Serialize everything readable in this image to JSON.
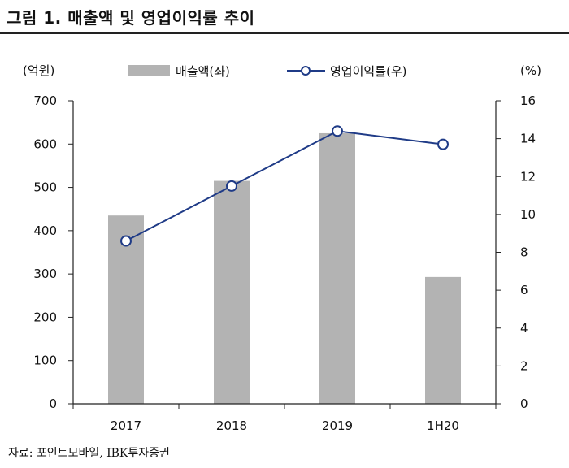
{
  "header": {
    "title": "그림 1. 매출액 및 영업이익률 추이"
  },
  "footer": {
    "source": "자료: 포인트모바일, IBK투자증권"
  },
  "colors": {
    "bar": "#b3b3b3",
    "line": "#1f3b87",
    "marker_fill": "#ffffff"
  },
  "chart_data": {
    "type": "bar",
    "categories": [
      "2017",
      "2018",
      "2019",
      "1H20"
    ],
    "series": [
      {
        "name": "매출액(좌)",
        "type": "bar",
        "axis": "left",
        "values": [
          435,
          515,
          625,
          293
        ]
      },
      {
        "name": "영업이익률(우)",
        "type": "line",
        "axis": "right",
        "values": [
          8.6,
          11.5,
          14.4,
          13.7
        ]
      }
    ],
    "left_axis": {
      "unit_label": "(억원)",
      "ylim": [
        0,
        700
      ],
      "ticks": [
        "0",
        "100",
        "200",
        "300",
        "400",
        "500",
        "600",
        "700"
      ]
    },
    "right_axis": {
      "unit_label": "(%)",
      "ylim": [
        0,
        16
      ],
      "ticks": [
        "0",
        "2",
        "4",
        "6",
        "8",
        "10",
        "12",
        "14",
        "16"
      ]
    },
    "legend_position": "top",
    "grid": false
  }
}
